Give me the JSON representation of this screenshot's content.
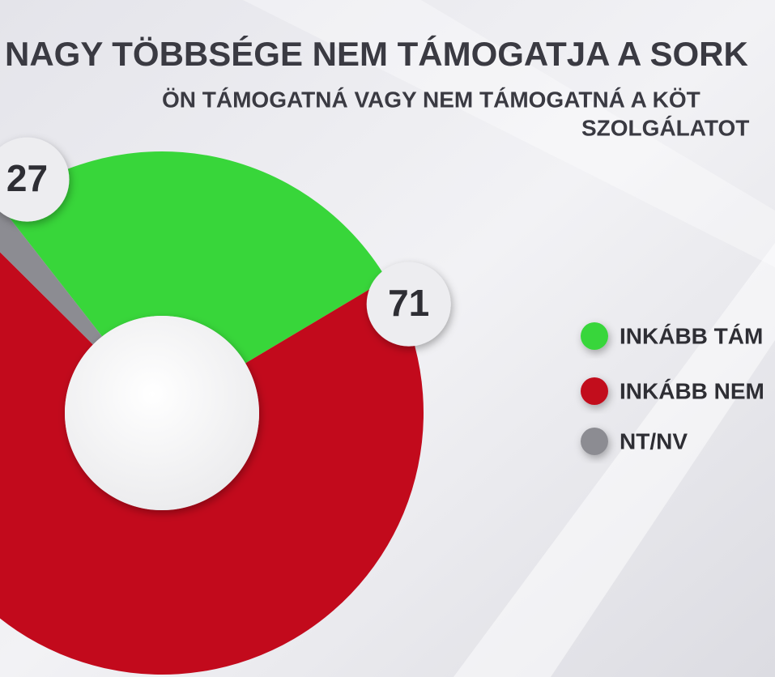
{
  "chart_data": {
    "type": "donut",
    "title": "NAGY TÖBBSÉGE NEM TÁMOGATJA A SORK",
    "subtitle": [
      "ÖN TÁMOGATNÁ VAGY NEM TÁMOGATNÁ A KÖT",
      "SZOLGÁLATOT"
    ],
    "categories": [
      "INKÁBB TÁM",
      "INKÁBB NEM",
      "NT/NV"
    ],
    "values": [
      27,
      71,
      2
    ],
    "colors": [
      "#38d63a",
      "#c20a1c",
      "#8c8c92"
    ],
    "value_labels": [
      "27",
      "71",
      null
    ]
  }
}
